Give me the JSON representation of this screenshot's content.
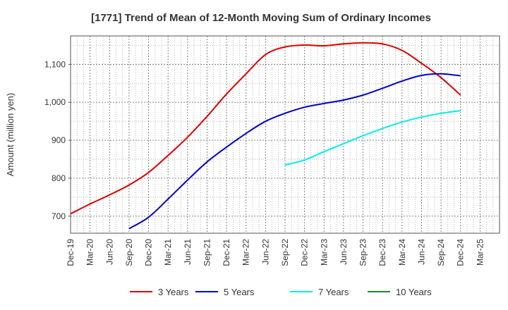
{
  "chart_data": {
    "type": "line",
    "title": "[1771]  Trend of Mean of 12-Month Moving Sum of Ordinary Incomes",
    "xlabel": "",
    "ylabel": "Amount (million yen)",
    "x_ticks": [
      "Dec-19",
      "Mar-20",
      "Jun-20",
      "Sep-20",
      "Dec-20",
      "Mar-21",
      "Jun-21",
      "Sep-21",
      "Dec-21",
      "Mar-22",
      "Jun-22",
      "Sep-22",
      "Dec-22",
      "Mar-23",
      "Jun-23",
      "Sep-23",
      "Dec-23",
      "Mar-24",
      "Jun-24",
      "Sep-24",
      "Dec-24",
      "Mar-25"
    ],
    "y_ticks": [
      700,
      800,
      900,
      1000,
      1100
    ],
    "y_tick_labels": [
      "700",
      "800",
      "900",
      "1,000",
      "1,100"
    ],
    "ylim": [
      655,
      1175
    ],
    "grid": true,
    "legend_position": "bottom",
    "series": [
      {
        "name": "3 Years",
        "color": "#dd0000",
        "x": [
          "Dec-19",
          "Mar-20",
          "Jun-20",
          "Sep-20",
          "Dec-20",
          "Mar-21",
          "Jun-21",
          "Sep-21",
          "Dec-21",
          "Mar-22",
          "Jun-22",
          "Sep-22",
          "Dec-22",
          "Mar-23",
          "Jun-23",
          "Sep-23",
          "Dec-23",
          "Mar-24",
          "Jun-24",
          "Sep-24",
          "Dec-24"
        ],
        "values": [
          706,
          732,
          756,
          782,
          815,
          860,
          908,
          963,
          1022,
          1075,
          1126,
          1146,
          1151,
          1149,
          1154,
          1157,
          1154,
          1137,
          1103,
          1065,
          1019
        ]
      },
      {
        "name": "5 Years",
        "color": "#0000cc",
        "x": [
          "Sep-20",
          "Dec-20",
          "Mar-21",
          "Jun-21",
          "Sep-21",
          "Dec-21",
          "Mar-22",
          "Jun-22",
          "Sep-22",
          "Dec-22",
          "Mar-23",
          "Jun-23",
          "Sep-23",
          "Dec-23",
          "Mar-24",
          "Jun-24",
          "Sep-24",
          "Dec-24"
        ],
        "values": [
          667,
          697,
          745,
          795,
          843,
          882,
          918,
          950,
          971,
          987,
          997,
          1006,
          1019,
          1037,
          1056,
          1071,
          1075,
          1070
        ]
      },
      {
        "name": "7 Years",
        "color": "#00eeee",
        "x": [
          "Sep-22",
          "Dec-22",
          "Mar-23",
          "Jun-23",
          "Sep-23",
          "Dec-23",
          "Mar-24",
          "Jun-24",
          "Sep-24",
          "Dec-24"
        ],
        "values": [
          835,
          848,
          870,
          891,
          912,
          931,
          948,
          961,
          971,
          978
        ]
      },
      {
        "name": "10 Years",
        "color": "#228822",
        "x": [],
        "values": []
      }
    ]
  }
}
